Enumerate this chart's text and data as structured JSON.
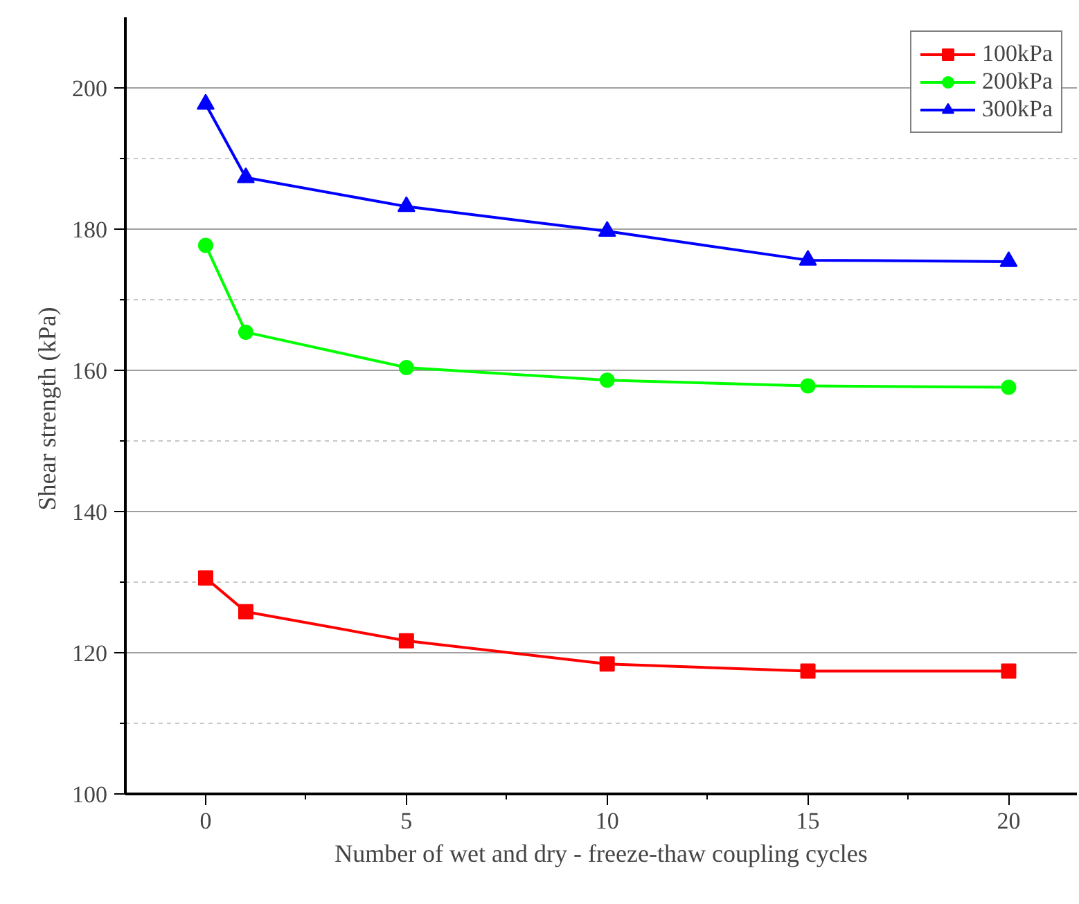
{
  "chart_data": {
    "type": "line",
    "xlabel": "Number of wet and dry - freeze-thaw coupling cycles",
    "ylabel": "Shear strength  (kPa)",
    "x": [
      0,
      1,
      5,
      10,
      15,
      20
    ],
    "series": [
      {
        "name": "100kPa",
        "color": "#ff0000",
        "marker": "square",
        "values": [
          130.6,
          125.8,
          121.7,
          118.4,
          117.4,
          117.4
        ]
      },
      {
        "name": "200kPa",
        "color": "#00ff00",
        "marker": "circle",
        "values": [
          177.7,
          165.4,
          160.4,
          158.6,
          157.8,
          157.6
        ]
      },
      {
        "name": "300kPa",
        "color": "#0000ff",
        "marker": "triangle",
        "values": [
          197.7,
          187.3,
          183.2,
          179.7,
          175.6,
          175.4
        ]
      }
    ],
    "xlim": [
      -2,
      21.7
    ],
    "ylim": [
      100,
      210
    ],
    "xticks": [
      0,
      5,
      10,
      15,
      20
    ],
    "yticks": [
      100,
      120,
      140,
      160,
      180,
      200
    ],
    "grid": "y",
    "legend": "top right",
    "line_style": "solid"
  }
}
